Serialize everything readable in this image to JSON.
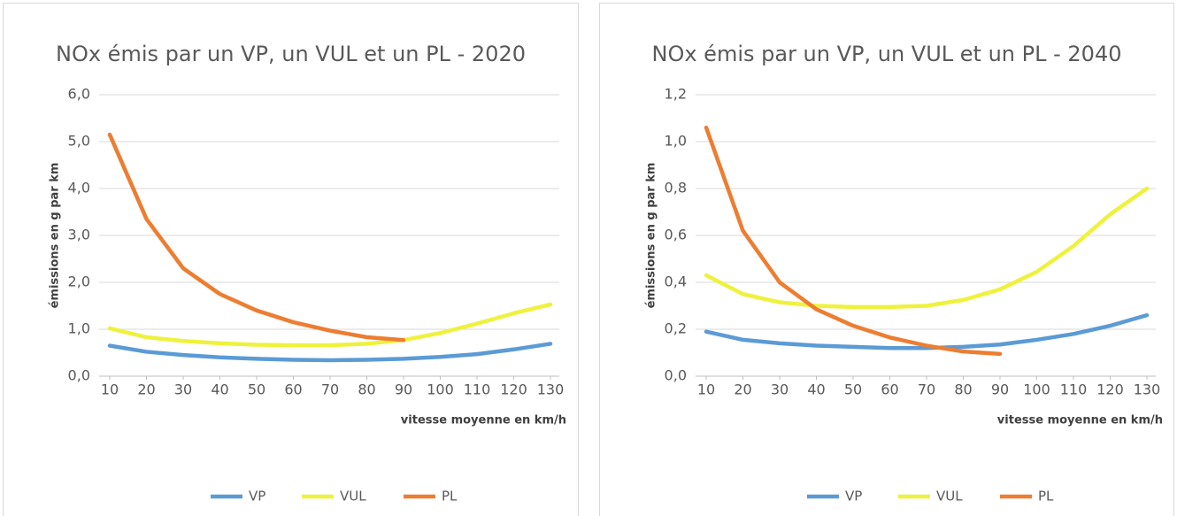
{
  "chart_data": [
    {
      "type": "line",
      "title": "NOx émis par un VP, un VUL et un PL - 2020",
      "x_label": "vitesse moyenne en km/h",
      "y_label": "émissions en g par km",
      "x": [
        10,
        20,
        30,
        40,
        50,
        60,
        70,
        80,
        90,
        100,
        110,
        120,
        130
      ],
      "xlim": [
        10,
        130
      ],
      "xticks": [
        10,
        20,
        30,
        40,
        50,
        60,
        70,
        80,
        90,
        100,
        110,
        120,
        130
      ],
      "ylim": [
        0,
        6
      ],
      "yticks": [
        {
          "value": 0,
          "label": "0,0"
        },
        {
          "value": 1,
          "label": "1,0"
        },
        {
          "value": 2,
          "label": "2,0"
        },
        {
          "value": 3,
          "label": "3,0"
        },
        {
          "value": 4,
          "label": "4,0"
        },
        {
          "value": 5,
          "label": "5,0"
        },
        {
          "value": 6,
          "label": "6,0"
        }
      ],
      "grid": true,
      "legend": "bottom",
      "series": [
        {
          "name": "VP",
          "color": "#5b9bd5",
          "values": [
            0.65,
            0.52,
            0.45,
            0.4,
            0.37,
            0.35,
            0.34,
            0.35,
            0.37,
            0.41,
            0.47,
            0.57,
            0.69
          ]
        },
        {
          "name": "VUL",
          "color": "#eef23c",
          "values": [
            1.02,
            0.83,
            0.75,
            0.7,
            0.67,
            0.66,
            0.66,
            0.69,
            0.77,
            0.92,
            1.12,
            1.34,
            1.53
          ]
        },
        {
          "name": "PL",
          "color": "#ed7d31",
          "values": [
            5.15,
            3.35,
            2.3,
            1.75,
            1.4,
            1.15,
            0.97,
            0.83,
            0.77,
            null,
            null,
            null,
            null
          ]
        }
      ]
    },
    {
      "type": "line",
      "title": "NOx émis par un VP, un VUL et un PL - 2040",
      "x_label": "vitesse moyenne en km/h",
      "y_label": "émissions en g par km",
      "x": [
        10,
        20,
        30,
        40,
        50,
        60,
        70,
        80,
        90,
        100,
        110,
        120,
        130
      ],
      "xlim": [
        10,
        130
      ],
      "xticks": [
        10,
        20,
        30,
        40,
        50,
        60,
        70,
        80,
        90,
        100,
        110,
        120,
        130
      ],
      "ylim": [
        0,
        1.2
      ],
      "yticks": [
        {
          "value": 0,
          "label": "0,0"
        },
        {
          "value": 0.2,
          "label": "0,2"
        },
        {
          "value": 0.4,
          "label": "0,4"
        },
        {
          "value": 0.6,
          "label": "0,6"
        },
        {
          "value": 0.8,
          "label": "0,8"
        },
        {
          "value": 1.0,
          "label": "1,0"
        },
        {
          "value": 1.2,
          "label": "1,2"
        }
      ],
      "grid": true,
      "legend": "bottom",
      "series": [
        {
          "name": "VP",
          "color": "#5b9bd5",
          "values": [
            0.19,
            0.155,
            0.14,
            0.13,
            0.125,
            0.12,
            0.12,
            0.125,
            0.135,
            0.155,
            0.18,
            0.215,
            0.26
          ]
        },
        {
          "name": "VUL",
          "color": "#eef23c",
          "values": [
            0.43,
            0.35,
            0.315,
            0.3,
            0.295,
            0.295,
            0.3,
            0.325,
            0.37,
            0.445,
            0.555,
            0.69,
            0.8
          ]
        },
        {
          "name": "PL",
          "color": "#ed7d31",
          "values": [
            1.06,
            0.62,
            0.4,
            0.285,
            0.215,
            0.165,
            0.13,
            0.105,
            0.095,
            null,
            null,
            null,
            null
          ]
        }
      ]
    }
  ]
}
